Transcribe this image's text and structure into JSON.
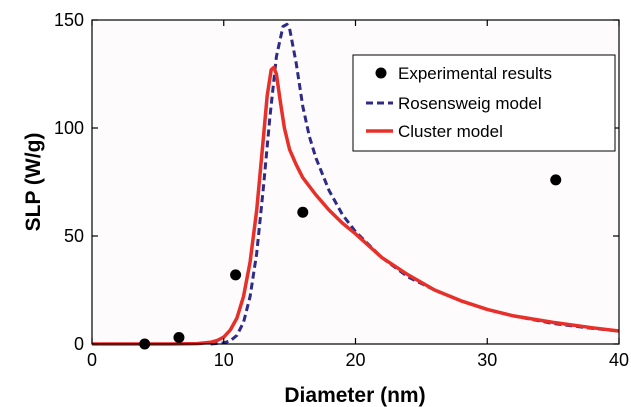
{
  "chart_data": {
    "type": "line",
    "xlabel": "Diameter (nm)",
    "ylabel": "SLP (W/g)",
    "xlim": [
      0,
      40
    ],
    "ylim": [
      0,
      150
    ],
    "xticks": [
      0,
      10,
      20,
      30,
      40
    ],
    "yticks": [
      0,
      50,
      100,
      150
    ],
    "grid": false,
    "legend_position": "top-right",
    "series": [
      {
        "name": "Experimental results",
        "kind": "scatter",
        "color": "#000000",
        "x": [
          4.0,
          6.6,
          10.9,
          16.0,
          35.2
        ],
        "y": [
          0,
          3,
          32,
          61,
          76
        ]
      },
      {
        "name": "Rosensweig model",
        "kind": "line",
        "style": "dashed",
        "color": "#2e2a87",
        "x": [
          9.0,
          10.0,
          10.5,
          11.0,
          11.5,
          12.0,
          12.5,
          13.0,
          13.5,
          14.0,
          14.5,
          14.8,
          15.0,
          15.5,
          16.0,
          16.5,
          17.0,
          18.0,
          19.0,
          20.0,
          22.0,
          24.0,
          26.0,
          28.0,
          30.0,
          32.0,
          35.0,
          38.0,
          40.0
        ],
        "y": [
          0,
          0.5,
          1.5,
          4,
          10,
          22,
          42,
          72,
          105,
          133,
          147,
          148,
          146,
          130,
          110,
          96,
          86,
          71,
          60,
          52,
          40,
          31,
          25,
          20,
          16,
          13,
          9.5,
          7.2,
          6
        ],
        "label": "Rosensweig model"
      },
      {
        "name": "Cluster model",
        "kind": "line",
        "style": "solid",
        "color": "#e8302a",
        "x": [
          0,
          2,
          4,
          6,
          8,
          9,
          9.5,
          10,
          10.5,
          11,
          11.5,
          12,
          12.5,
          13,
          13.3,
          13.6,
          13.8,
          14.0,
          14.3,
          14.6,
          15.0,
          15.5,
          16.0,
          17.0,
          18.0,
          19.0,
          20.0,
          22.0,
          24.0,
          26.0,
          28.0,
          30.0,
          32.0,
          35.0,
          38.0,
          40.0
        ],
        "y": [
          0,
          0,
          0,
          0,
          0.2,
          0.8,
          1.6,
          3.2,
          6.5,
          12,
          22,
          38,
          62,
          95,
          115,
          127,
          128,
          125,
          112,
          100,
          90,
          83,
          77,
          69,
          62,
          56,
          51,
          40,
          32,
          25,
          20,
          16,
          13,
          10,
          7.5,
          6
        ],
        "label": "Cluster model"
      }
    ]
  }
}
